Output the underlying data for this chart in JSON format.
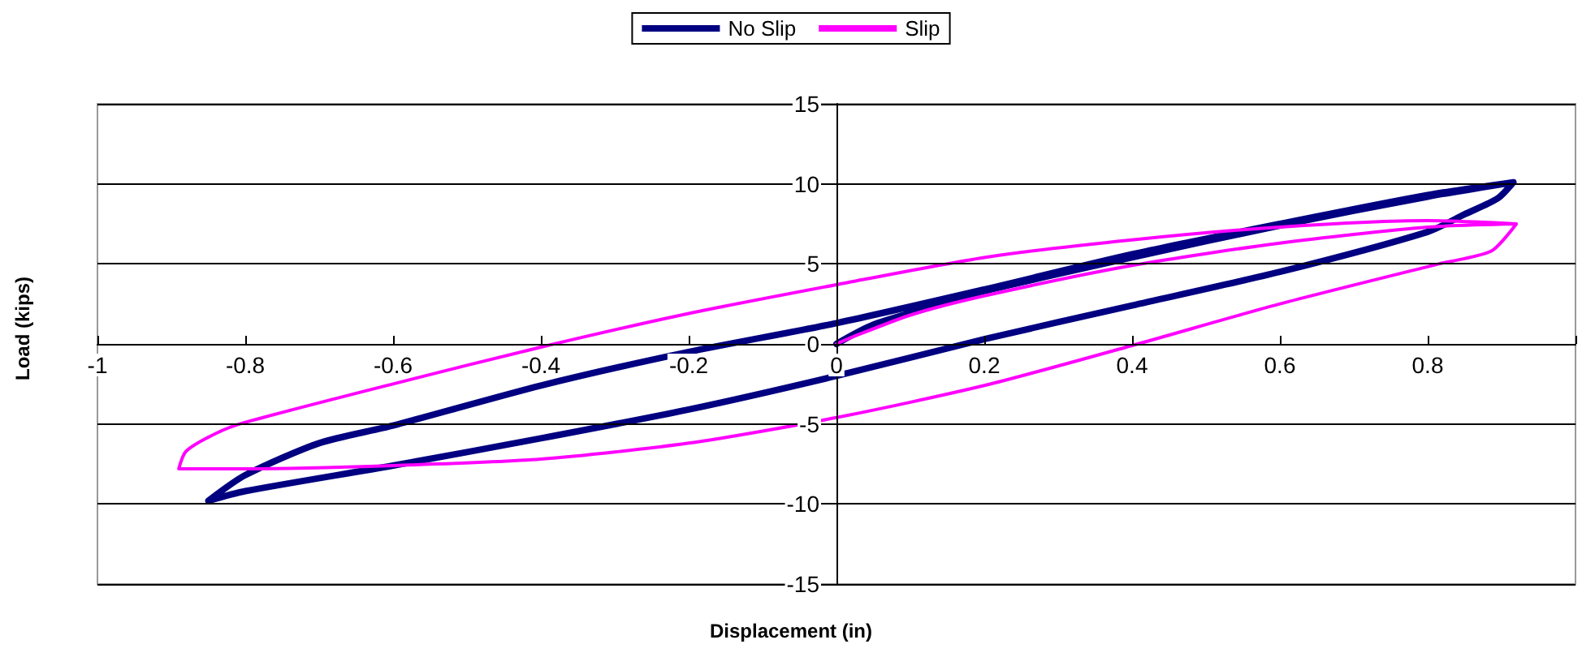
{
  "chart_data": {
    "type": "line",
    "xlabel": "Displacement (in)",
    "ylabel": "Load (kips)",
    "xlim": [
      -1,
      1
    ],
    "xticks": [
      -1,
      -0.8,
      -0.6,
      -0.4,
      -0.2,
      0,
      0.2,
      0.4,
      0.6,
      0.8,
      {
        "value": 1,
        "label": null
      }
    ],
    "ylim": [
      -15,
      15
    ],
    "yticks": [
      -15,
      -10,
      -5,
      0,
      5,
      10,
      15
    ],
    "grid": "y",
    "legend": "top",
    "marker": "none",
    "line_style": "solid",
    "series": [
      {
        "name": "No Slip",
        "color": "#000080",
        "x": [
          0,
          0.05,
          0.15,
          0.2,
          0.4,
          0.6,
          0.8,
          0.916,
          0.895,
          0.85,
          0.8,
          0.6,
          0.4,
          0.2,
          0,
          -0.2,
          -0.4,
          -0.6,
          -0.8,
          -0.85,
          -0.8,
          -0.7,
          -0.6,
          -0.4,
          -0.2,
          0,
          0.2,
          0.4,
          0.6,
          0.8,
          0.916
        ],
        "values": [
          0,
          1.2,
          2.6,
          3.3,
          5.4,
          7.4,
          9.2,
          10.1,
          9.1,
          8.1,
          7.0,
          4.5,
          2.4,
          0.3,
          -2.0,
          -4.1,
          -5.9,
          -7.6,
          -9.2,
          -9.8,
          -8.2,
          -6.2,
          -5.1,
          -2.6,
          -0.5,
          1.3,
          3.4,
          5.6,
          7.5,
          9.3,
          10.1
        ]
      },
      {
        "name": "Slip",
        "color": "#ff00ff",
        "x": [
          0,
          0.02,
          0.1,
          0.2,
          0.4,
          0.6,
          0.8,
          0.92,
          0.886,
          0.815,
          0.6,
          0.4,
          0.2,
          0,
          -0.2,
          -0.4,
          -0.6,
          -0.8,
          -0.89,
          -0.88,
          -0.84,
          -0.8,
          -0.6,
          -0.4,
          -0.2,
          0,
          0.2,
          0.4,
          0.6,
          0.8,
          0.92
        ],
        "values": [
          0,
          0.4,
          1.8,
          3.0,
          4.9,
          6.3,
          7.3,
          7.5,
          5.8,
          5.0,
          2.5,
          -0.1,
          -2.6,
          -4.6,
          -6.2,
          -7.2,
          -7.6,
          -7.8,
          -7.8,
          -6.7,
          -5.6,
          -4.9,
          -2.5,
          -0.2,
          1.9,
          3.7,
          5.4,
          6.5,
          7.3,
          7.7,
          7.5
        ]
      }
    ]
  }
}
